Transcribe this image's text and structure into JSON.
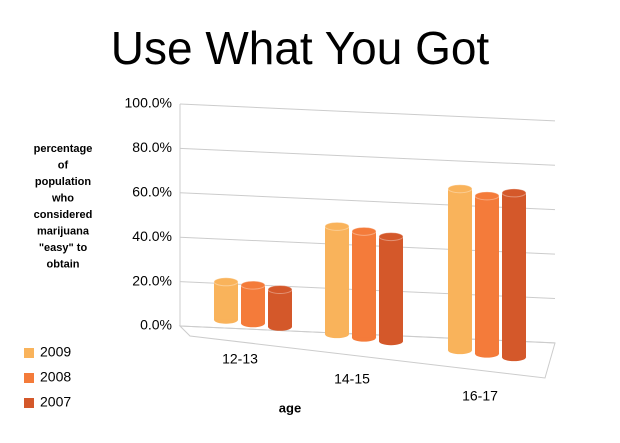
{
  "chart_data": {
    "type": "bar3d",
    "title": "Use What You Got",
    "ylabel": [
      "percentage",
      "of",
      "population",
      "who",
      "considered",
      "marijuana",
      "\"easy\" to",
      "obtain"
    ],
    "xlabel": "age",
    "categories": [
      "12-13",
      "14-15",
      "16-17"
    ],
    "series": [
      {
        "name": "2009",
        "color": "#f9b35b",
        "values": [
          19.5,
          49,
          65
        ]
      },
      {
        "name": "2008",
        "color": "#f47b3a",
        "values": [
          19,
          47,
          62
        ]
      },
      {
        "name": "2007",
        "color": "#d4582a",
        "values": [
          18,
          45,
          63
        ]
      }
    ],
    "ylim": [
      0,
      100
    ],
    "yticks": [
      {
        "value": 0,
        "label": "0.0%"
      },
      {
        "value": 20,
        "label": "20.0%"
      },
      {
        "value": 40,
        "label": "40.0%"
      },
      {
        "value": 60,
        "label": "60.0%"
      },
      {
        "value": 80,
        "label": "80.0%"
      },
      {
        "value": 100,
        "label": "100.0%"
      }
    ],
    "grid": true
  }
}
